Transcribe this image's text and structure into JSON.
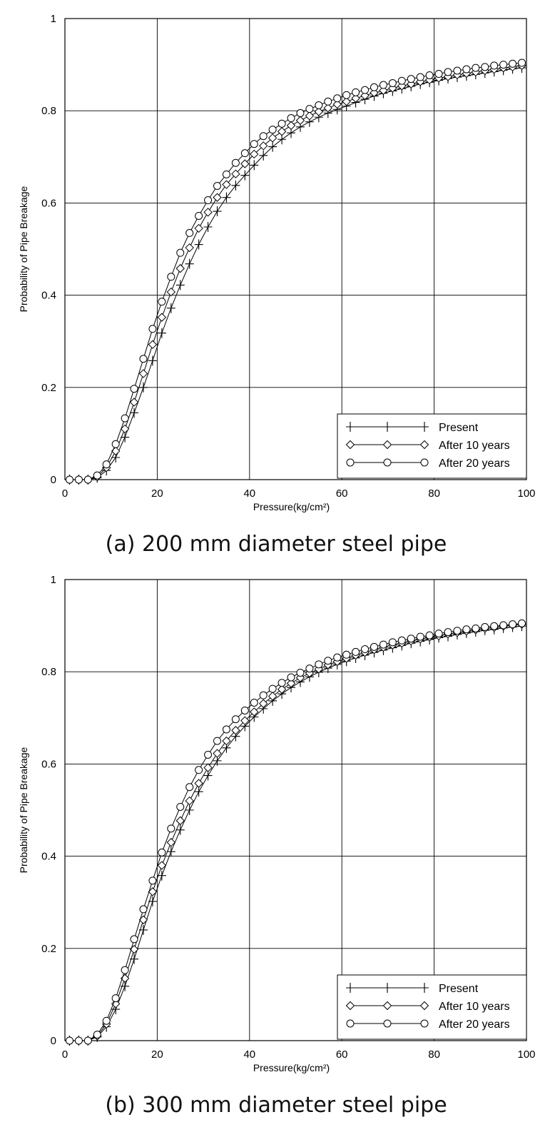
{
  "chart_data": [
    {
      "type": "line",
      "caption": "(a) 200 mm diameter steel pipe",
      "xlabel": "Pressure(kg/cm²)",
      "ylabel": "Probability of Pipe Breakage",
      "xlim": [
        0,
        100
      ],
      "ylim": [
        0,
        1
      ],
      "xticks": [
        "0",
        "20",
        "40",
        "60",
        "80",
        "100"
      ],
      "yticks": [
        "0",
        "0.2",
        "0.4",
        "0.6",
        "0.8",
        "1"
      ],
      "grid": true,
      "legend_position": "bottom-right",
      "x": [
        1,
        3,
        5,
        7,
        9,
        11,
        13,
        15,
        17,
        19,
        21,
        23,
        25,
        27,
        29,
        31,
        33,
        35,
        37,
        39,
        41,
        43,
        45,
        47,
        49,
        51,
        53,
        55,
        57,
        59,
        61,
        63,
        65,
        67,
        69,
        71,
        73,
        75,
        77,
        79,
        81,
        83,
        85,
        87,
        89,
        91,
        93,
        95,
        97,
        99
      ],
      "series": [
        {
          "name": "Present",
          "marker": "plus",
          "values": [
            0.0,
            0.0,
            0.0,
            0.004,
            0.02,
            0.048,
            0.092,
            0.145,
            0.2,
            0.258,
            0.318,
            0.372,
            0.422,
            0.468,
            0.51,
            0.548,
            0.582,
            0.612,
            0.638,
            0.66,
            0.682,
            0.703,
            0.722,
            0.738,
            0.752,
            0.765,
            0.776,
            0.786,
            0.795,
            0.803,
            0.81,
            0.818,
            0.825,
            0.832,
            0.838,
            0.843,
            0.848,
            0.853,
            0.858,
            0.862,
            0.866,
            0.87,
            0.873,
            0.876,
            0.879,
            0.882,
            0.885,
            0.888,
            0.891,
            0.893
          ]
        },
        {
          "name": "After 10 years",
          "marker": "diamond",
          "values": [
            0.0,
            0.0,
            0.0,
            0.006,
            0.026,
            0.062,
            0.11,
            0.168,
            0.23,
            0.293,
            0.352,
            0.407,
            0.458,
            0.503,
            0.545,
            0.58,
            0.612,
            0.64,
            0.663,
            0.685,
            0.706,
            0.724,
            0.741,
            0.755,
            0.768,
            0.779,
            0.789,
            0.798,
            0.806,
            0.814,
            0.82,
            0.827,
            0.833,
            0.839,
            0.844,
            0.849,
            0.854,
            0.858,
            0.863,
            0.867,
            0.871,
            0.874,
            0.878,
            0.881,
            0.884,
            0.887,
            0.89,
            0.893,
            0.895,
            0.898
          ]
        },
        {
          "name": "After 20 years",
          "marker": "circle",
          "values": [
            0.0,
            0.0,
            0.0,
            0.009,
            0.033,
            0.077,
            0.133,
            0.197,
            0.262,
            0.327,
            0.386,
            0.44,
            0.492,
            0.535,
            0.572,
            0.606,
            0.637,
            0.662,
            0.687,
            0.708,
            0.728,
            0.745,
            0.759,
            0.772,
            0.784,
            0.795,
            0.804,
            0.812,
            0.82,
            0.827,
            0.834,
            0.84,
            0.845,
            0.851,
            0.856,
            0.86,
            0.865,
            0.869,
            0.873,
            0.877,
            0.88,
            0.884,
            0.887,
            0.89,
            0.893,
            0.895,
            0.898,
            0.9,
            0.902,
            0.904
          ]
        }
      ]
    },
    {
      "type": "line",
      "caption": "(b) 300 mm diameter steel pipe",
      "xlabel": "Pressure(kg/cm²)",
      "ylabel": "Probability of Pipe Breakage",
      "xlim": [
        0,
        100
      ],
      "ylim": [
        0,
        1
      ],
      "xticks": [
        "0",
        "20",
        "40",
        "60",
        "80",
        "100"
      ],
      "yticks": [
        "0",
        "0.2",
        "0.4",
        "0.6",
        "0.8",
        "1"
      ],
      "grid": true,
      "legend_position": "bottom-right",
      "x": [
        1,
        3,
        5,
        7,
        9,
        11,
        13,
        15,
        17,
        19,
        21,
        23,
        25,
        27,
        29,
        31,
        33,
        35,
        37,
        39,
        41,
        43,
        45,
        47,
        49,
        51,
        53,
        55,
        57,
        59,
        61,
        63,
        65,
        67,
        69,
        71,
        73,
        75,
        77,
        79,
        81,
        83,
        85,
        87,
        89,
        91,
        93,
        95,
        97,
        99
      ],
      "series": [
        {
          "name": "Present",
          "marker": "plus",
          "values": [
            0.0,
            0.0,
            0.0,
            0.008,
            0.03,
            0.068,
            0.118,
            0.177,
            0.24,
            0.302,
            0.358,
            0.41,
            0.457,
            0.5,
            0.54,
            0.575,
            0.607,
            0.635,
            0.66,
            0.682,
            0.702,
            0.72,
            0.737,
            0.752,
            0.766,
            0.778,
            0.789,
            0.799,
            0.808,
            0.816,
            0.823,
            0.83,
            0.836,
            0.842,
            0.847,
            0.852,
            0.857,
            0.862,
            0.866,
            0.87,
            0.874,
            0.877,
            0.881,
            0.884,
            0.887,
            0.89,
            0.892,
            0.895,
            0.897,
            0.899
          ]
        },
        {
          "name": "After 10 years",
          "marker": "diamond",
          "values": [
            0.0,
            0.0,
            0.0,
            0.01,
            0.036,
            0.08,
            0.135,
            0.198,
            0.262,
            0.323,
            0.38,
            0.43,
            0.477,
            0.52,
            0.558,
            0.592,
            0.623,
            0.65,
            0.673,
            0.694,
            0.713,
            0.731,
            0.747,
            0.762,
            0.775,
            0.787,
            0.797,
            0.806,
            0.815,
            0.822,
            0.829,
            0.836,
            0.842,
            0.848,
            0.853,
            0.858,
            0.862,
            0.867,
            0.871,
            0.875,
            0.878,
            0.882,
            0.885,
            0.888,
            0.891,
            0.894,
            0.896,
            0.899,
            0.901,
            0.903
          ]
        },
        {
          "name": "After 20 years",
          "marker": "circle",
          "values": [
            0.0,
            0.0,
            0.0,
            0.013,
            0.043,
            0.092,
            0.153,
            0.22,
            0.285,
            0.347,
            0.408,
            0.46,
            0.507,
            0.55,
            0.587,
            0.62,
            0.65,
            0.675,
            0.697,
            0.716,
            0.733,
            0.749,
            0.763,
            0.776,
            0.788,
            0.798,
            0.807,
            0.816,
            0.824,
            0.831,
            0.837,
            0.843,
            0.849,
            0.854,
            0.859,
            0.864,
            0.868,
            0.872,
            0.876,
            0.879,
            0.883,
            0.886,
            0.889,
            0.892,
            0.894,
            0.897,
            0.899,
            0.901,
            0.903,
            0.905
          ]
        }
      ]
    }
  ]
}
